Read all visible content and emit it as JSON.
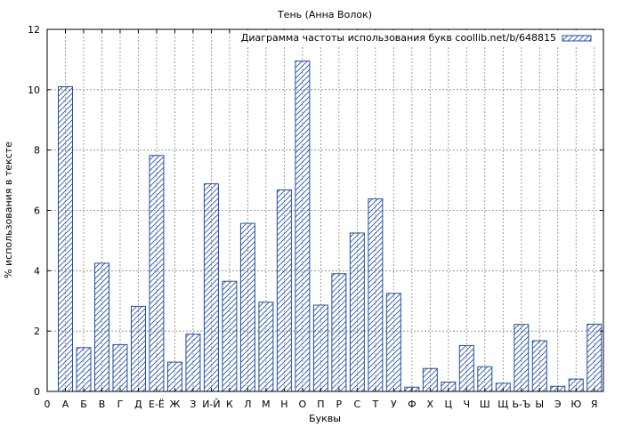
{
  "chart_data": {
    "type": "bar",
    "title": "Тень (Анна Волок)",
    "xlabel": "Буквы",
    "ylabel": "% использования в тексте",
    "legend": {
      "label": "Диаграмма частоты использования букв coollib.net/b/648815",
      "position": "top-right"
    },
    "x_start_label": "0",
    "categories": [
      "А",
      "Б",
      "В",
      "Г",
      "Д",
      "Е-Ё",
      "Ж",
      "З",
      "И-Й",
      "К",
      "Л",
      "М",
      "Н",
      "О",
      "П",
      "Р",
      "С",
      "Т",
      "У",
      "Ф",
      "Х",
      "Ц",
      "Ч",
      "Ш",
      "Щ",
      "Ь-Ъ",
      "Ы",
      "Э",
      "Ю",
      "Я"
    ],
    "values": [
      10.1,
      1.45,
      4.25,
      1.55,
      2.82,
      7.82,
      0.97,
      1.9,
      6.88,
      3.65,
      5.57,
      2.96,
      6.68,
      10.95,
      2.86,
      3.9,
      5.25,
      6.38,
      3.25,
      0.14,
      0.76,
      0.31,
      1.52,
      0.82,
      0.27,
      2.22,
      1.68,
      0.17,
      0.41,
      2.23
    ],
    "ylim": [
      0,
      12
    ],
    "yticks": [
      0,
      2,
      4,
      6,
      8,
      10,
      12
    ],
    "grid": true,
    "bar_color": "#1f4ea8",
    "hatch": "diagonal"
  }
}
